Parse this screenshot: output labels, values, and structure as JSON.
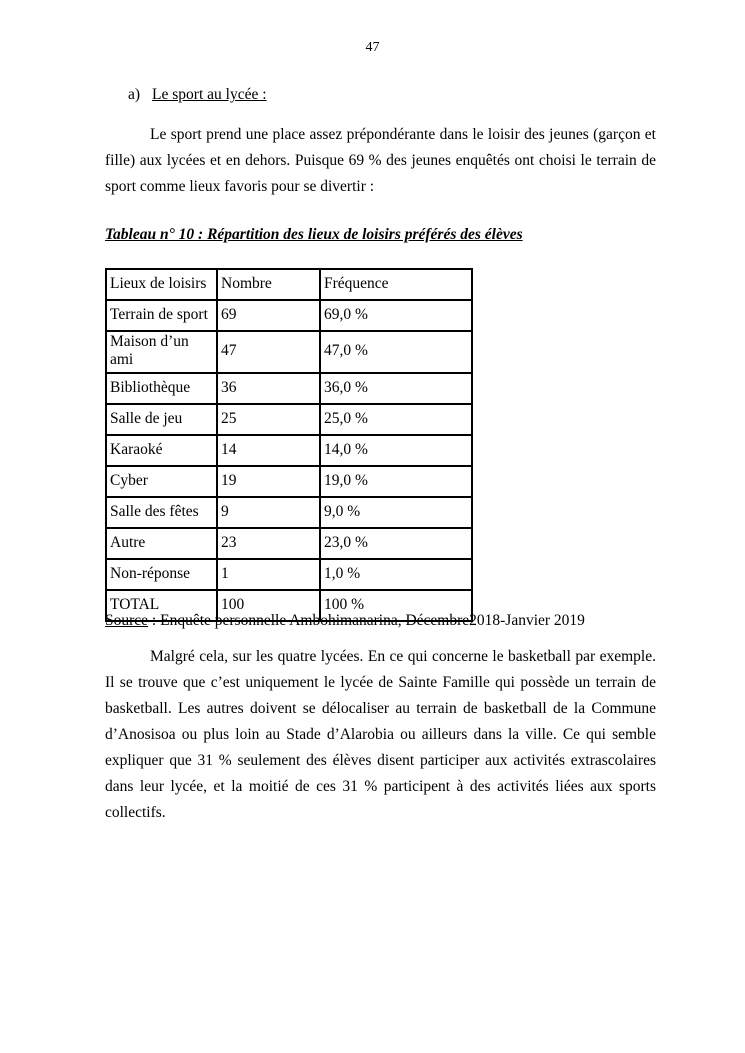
{
  "page": {
    "number": "47"
  },
  "heading": {
    "marker": "a)",
    "text": "Le sport au lycée :"
  },
  "paragraphs": {
    "intro": "Le sport prend une place assez prépondérante dans le loisir des jeunes (garçon et fille) aux lycées et en dehors. Puisque 69 % des jeunes enquêtés ont choisi le terrain de sport comme lieux favoris pour se divertir :",
    "analysis": "Malgré cela, sur les quatre lycées. En ce qui concerne le basketball par exemple. Il se trouve que c’est uniquement le lycée de Sainte Famille qui possède un terrain de basketball. Les autres doivent se délocaliser au terrain de basketball de la Commune d’Anosisoa ou plus loin au Stade d’Alarobia ou ailleurs dans la ville. Ce qui semble expliquer que 31 % seulement des élèves disent participer aux activités extrascolaires dans leur lycée, et la moitié de ces 31 % participent à des activités liées aux sports collectifs."
  },
  "table_title": "Tableau n° 10 : Répartition des lieux de loisirs préférés des élèves",
  "chart_data": {
    "type": "table",
    "columns": [
      "Lieux de loisirs",
      "Nombre",
      "Fréquence"
    ],
    "rows": [
      [
        "Terrain de sport",
        "69",
        "69,0 %"
      ],
      [
        "Maison d’un ami",
        "47",
        "47,0 %"
      ],
      [
        "Bibliothèque",
        "36",
        "36,0 %"
      ],
      [
        "Salle de jeu",
        "25",
        "25,0 %"
      ],
      [
        "Karaoké",
        "14",
        "14,0 %"
      ],
      [
        "Cyber",
        "19",
        "19,0 %"
      ],
      [
        "Salle des fêtes",
        "9",
        "9,0 %"
      ],
      [
        "Autre",
        "23",
        "23,0 %"
      ],
      [
        "Non-réponse",
        "1",
        "1,0 %"
      ],
      [
        "TOTAL",
        "100",
        "100 %"
      ]
    ]
  },
  "source": {
    "label": "Source",
    "text": " : Enquête personnelle Ambohimanarina, Décembre2018-Janvier 2019"
  }
}
